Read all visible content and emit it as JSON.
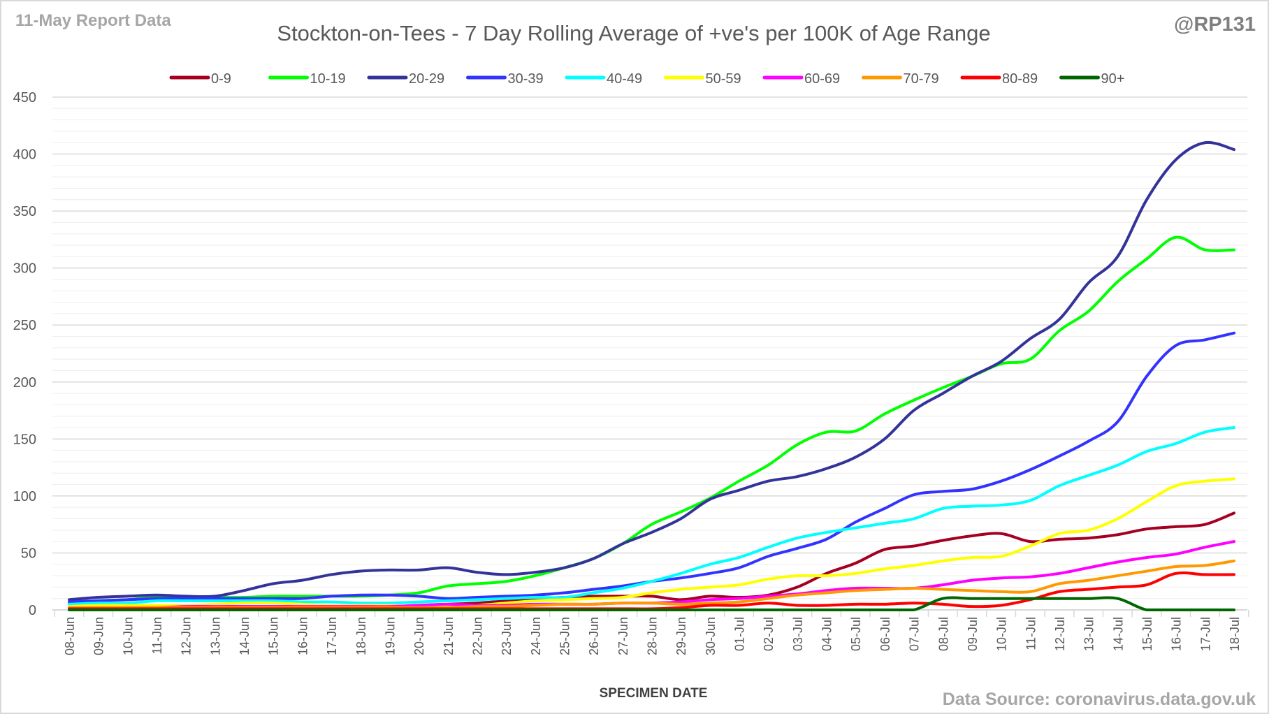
{
  "chart_data": {
    "type": "line",
    "title": "Stockton-on-Tees - 7 Day Rolling Average of +ve's per 100K of Age Range",
    "report_label": "11-May Report Data",
    "handle": "@RP131",
    "source": "Data Source: coronavirus.data.gov.uk",
    "xlabel": "SPECIMEN DATE",
    "ylabel": "",
    "ylim": [
      0,
      450
    ],
    "yticks": [
      0,
      50,
      100,
      150,
      200,
      250,
      300,
      350,
      400,
      450
    ],
    "grid": true,
    "legend_position": "top",
    "x": [
      "08-Jun",
      "09-Jun",
      "10-Jun",
      "11-Jun",
      "12-Jun",
      "13-Jun",
      "14-Jun",
      "15-Jun",
      "16-Jun",
      "17-Jun",
      "18-Jun",
      "19-Jun",
      "20-Jun",
      "21-Jun",
      "22-Jun",
      "23-Jun",
      "24-Jun",
      "25-Jun",
      "26-Jun",
      "27-Jun",
      "28-Jun",
      "29-Jun",
      "30-Jun",
      "01-Jul",
      "02-Jul",
      "03-Jul",
      "04-Jul",
      "05-Jul",
      "06-Jul",
      "07-Jul",
      "08-Jul",
      "09-Jul",
      "10-Jul",
      "11-Jul",
      "12-Jul",
      "13-Jul",
      "14-Jul",
      "15-Jul",
      "16-Jul",
      "17-Jul",
      "18-Jul"
    ],
    "series": [
      {
        "name": "0-9",
        "color": "#a50021",
        "values": [
          2,
          2,
          2,
          2,
          2,
          3,
          3,
          3,
          3,
          3,
          3,
          3,
          4,
          5,
          6,
          8,
          10,
          11,
          12,
          12,
          12,
          9,
          12,
          11,
          13,
          20,
          32,
          41,
          53,
          56,
          61,
          65,
          67,
          60,
          62,
          63,
          66,
          71,
          73,
          75,
          85
        ]
      },
      {
        "name": "10-19",
        "color": "#00ff00",
        "values": [
          6,
          8,
          9,
          11,
          11,
          11,
          11,
          12,
          12,
          12,
          12,
          13,
          15,
          21,
          23,
          25,
          30,
          37,
          45,
          58,
          75,
          86,
          98,
          113,
          127,
          145,
          156,
          157,
          172,
          184,
          195,
          205,
          216,
          220,
          245,
          262,
          288,
          308,
          327,
          316,
          316
        ]
      },
      {
        "name": "20-29",
        "color": "#333399",
        "values": [
          9,
          11,
          12,
          13,
          12,
          12,
          17,
          23,
          26,
          31,
          34,
          35,
          35,
          37,
          33,
          31,
          33,
          37,
          45,
          58,
          68,
          80,
          97,
          105,
          113,
          117,
          124,
          134,
          150,
          175,
          190,
          205,
          218,
          238,
          255,
          287,
          310,
          360,
          395,
          410,
          404
        ]
      },
      {
        "name": "30-39",
        "color": "#3333ff",
        "values": [
          7,
          8,
          9,
          10,
          10,
          10,
          10,
          10,
          10,
          12,
          13,
          13,
          12,
          10,
          11,
          12,
          13,
          15,
          18,
          21,
          25,
          28,
          32,
          37,
          47,
          54,
          62,
          77,
          89,
          101,
          104,
          106,
          113,
          123,
          135,
          148,
          165,
          205,
          232,
          237,
          243
        ]
      },
      {
        "name": "40-49",
        "color": "#00ffff",
        "values": [
          5,
          6,
          6,
          8,
          8,
          8,
          8,
          8,
          7,
          7,
          6,
          6,
          7,
          8,
          9,
          10,
          11,
          11,
          15,
          19,
          25,
          32,
          40,
          46,
          55,
          63,
          68,
          72,
          76,
          80,
          89,
          91,
          92,
          96,
          109,
          118,
          127,
          139,
          146,
          156,
          160
        ]
      },
      {
        "name": "50-59",
        "color": "#ffff00",
        "values": [
          3,
          4,
          4,
          4,
          4,
          5,
          6,
          6,
          5,
          4,
          4,
          4,
          3,
          3,
          4,
          6,
          8,
          9,
          10,
          11,
          15,
          18,
          20,
          22,
          27,
          30,
          30,
          32,
          36,
          39,
          43,
          46,
          47,
          56,
          67,
          70,
          80,
          95,
          109,
          113,
          115
        ]
      },
      {
        "name": "60-69",
        "color": "#ff00ff",
        "values": [
          1,
          1,
          2,
          2,
          3,
          3,
          3,
          3,
          3,
          3,
          3,
          3,
          4,
          5,
          4,
          4,
          5,
          5,
          5,
          6,
          6,
          7,
          9,
          10,
          12,
          14,
          17,
          19,
          19,
          19,
          22,
          26,
          28,
          29,
          32,
          37,
          42,
          46,
          49,
          55,
          60
        ]
      },
      {
        "name": "70-79",
        "color": "#ff9900",
        "values": [
          2,
          2,
          2,
          2,
          2,
          2,
          2,
          2,
          2,
          2,
          2,
          2,
          2,
          2,
          3,
          3,
          4,
          5,
          5,
          6,
          6,
          5,
          6,
          7,
          10,
          13,
          15,
          17,
          18,
          19,
          18,
          17,
          16,
          16,
          23,
          26,
          30,
          34,
          38,
          39,
          43
        ]
      },
      {
        "name": "80-89",
        "color": "#ff0000",
        "values": [
          1,
          1,
          1,
          1,
          1,
          1,
          1,
          1,
          1,
          1,
          1,
          1,
          1,
          1,
          1,
          1,
          1,
          1,
          1,
          1,
          1,
          2,
          4,
          4,
          6,
          4,
          4,
          5,
          5,
          6,
          5,
          3,
          4,
          9,
          16,
          18,
          20,
          22,
          32,
          31,
          31
        ]
      },
      {
        "name": "90+",
        "color": "#006600",
        "values": [
          0,
          0,
          0,
          0,
          0,
          0,
          0,
          0,
          0,
          0,
          0,
          0,
          0,
          0,
          0,
          0,
          0,
          0,
          0,
          0,
          0,
          0,
          0,
          0,
          0,
          0,
          0,
          0,
          0,
          0,
          10,
          10,
          10,
          10,
          10,
          10,
          10,
          0,
          0,
          0,
          0
        ]
      }
    ]
  }
}
